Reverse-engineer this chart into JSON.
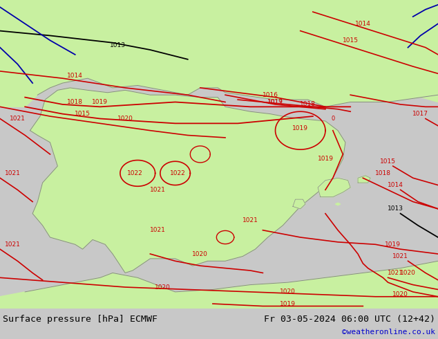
{
  "title_left": "Surface pressure [hPa] ECMWF",
  "title_right": "Fr 03-05-2024 06:00 UTC (12+42)",
  "credit": "©weatheronline.co.uk",
  "bg_color": "#d8d8d8",
  "land_color": "#c8f0a0",
  "figsize": [
    6.34,
    4.9
  ],
  "dpi": 100,
  "bottom_bar_color": "#c8c8c8",
  "title_fontsize": 9.5,
  "credit_color": "#0000cc",
  "credit_fontsize": 8,
  "red": "#cc0000",
  "black": "#000000",
  "blue": "#0000aa",
  "gray": "#888888",
  "lon_min": -10.5,
  "lon_max": 7.0,
  "lat_min": 34.5,
  "lat_max": 47.5
}
